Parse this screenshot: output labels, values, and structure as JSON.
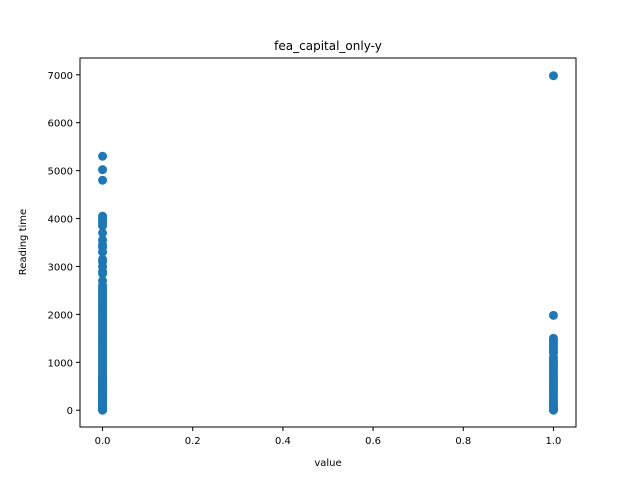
{
  "chart_data": {
    "type": "scatter",
    "title": "fea_capital_only-y",
    "xlabel": "value",
    "ylabel": "Reading time",
    "xlim": [
      -0.05,
      1.05
    ],
    "ylim": [
      -350,
      7350
    ],
    "xticks": [
      0.0,
      0.2,
      0.4,
      0.6,
      0.8,
      1.0
    ],
    "xtick_labels": [
      "0.0",
      "0.2",
      "0.4",
      "0.6",
      "0.8",
      "1.0"
    ],
    "yticks": [
      0,
      1000,
      2000,
      3000,
      4000,
      5000,
      6000,
      7000
    ],
    "ytick_labels": [
      "0",
      "1000",
      "2000",
      "3000",
      "4000",
      "5000",
      "6000",
      "7000"
    ],
    "grid": false,
    "marker_color": "#1f77b4",
    "series": [
      {
        "x": [
          0,
          0,
          0,
          0,
          0,
          0,
          0,
          0,
          0,
          0,
          0,
          0,
          0,
          0,
          0,
          0,
          0,
          0,
          0,
          0,
          0,
          0,
          0,
          0,
          0,
          0,
          0,
          0,
          0,
          0,
          0,
          0,
          0,
          0,
          0,
          0,
          0,
          0,
          0,
          0,
          0,
          0,
          0,
          0,
          0,
          0,
          0,
          0,
          0,
          0,
          0,
          0,
          0,
          0,
          0,
          0,
          0,
          0,
          0,
          0,
          0,
          0,
          0,
          0,
          0,
          0,
          0,
          0,
          0,
          0,
          0,
          0,
          0,
          0,
          0,
          0,
          0,
          0,
          0,
          0,
          0,
          0,
          0,
          0,
          0,
          0,
          0,
          0,
          0,
          0,
          0,
          0,
          0,
          0,
          0,
          0,
          0,
          0,
          0,
          0,
          0,
          0,
          0,
          0
        ],
        "y": [
          5300,
          5020,
          4800,
          4050,
          4000,
          3950,
          3900,
          3850,
          3700,
          3550,
          3450,
          3400,
          3300,
          3150,
          3100,
          3000,
          2900,
          2850,
          2700,
          2600,
          2550,
          2500,
          2450,
          2400,
          2350,
          2300,
          2250,
          2200,
          2150,
          2100,
          2050,
          2000,
          1950,
          1900,
          1850,
          1800,
          1750,
          1700,
          1650,
          1600,
          1550,
          1500,
          1450,
          1400,
          1350,
          1300,
          1250,
          1200,
          1150,
          1100,
          1050,
          1000,
          950,
          900,
          850,
          800,
          750,
          700,
          650,
          600,
          550,
          500,
          450,
          400,
          350,
          300,
          250,
          200,
          150,
          100,
          80,
          60,
          40,
          20,
          10,
          0,
          30,
          50,
          70,
          90,
          110,
          130,
          170,
          190,
          210,
          230,
          270,
          290,
          310,
          330,
          370,
          390,
          410,
          430,
          470,
          490,
          510,
          530,
          570,
          590,
          610,
          630,
          670,
          690
        ]
      },
      {
        "x": [
          1,
          1,
          1,
          1,
          1,
          1,
          1,
          1,
          1,
          1,
          1,
          1,
          1,
          1,
          1,
          1,
          1,
          1,
          1,
          1,
          1,
          1,
          1,
          1,
          1,
          1,
          1,
          1,
          1,
          1,
          1,
          1,
          1,
          1,
          1,
          1
        ],
        "y": [
          6980,
          1980,
          1500,
          1450,
          1400,
          1350,
          1300,
          1250,
          1200,
          1100,
          1050,
          1000,
          950,
          900,
          850,
          800,
          750,
          700,
          650,
          600,
          550,
          500,
          450,
          400,
          350,
          300,
          250,
          200,
          150,
          100,
          80,
          60,
          40,
          20,
          10,
          0
        ]
      }
    ]
  }
}
